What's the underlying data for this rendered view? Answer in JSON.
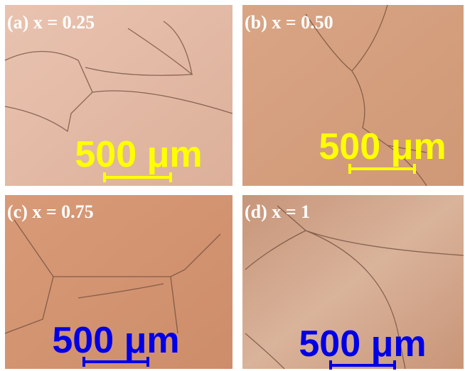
{
  "panels": [
    {
      "label": "(a) x = 0.25",
      "scale_bar": "500 μm",
      "scale_color": "#ffff00"
    },
    {
      "label": "(b) x = 0.50",
      "scale_bar": "500 μm",
      "scale_color": "#ffff00"
    },
    {
      "label": "(c) x = 0.75",
      "scale_bar": "500 μm",
      "scale_color": "#0000e6"
    },
    {
      "label": "(d) x = 1",
      "scale_bar": "500 μm",
      "scale_color": "#0000e6"
    }
  ]
}
